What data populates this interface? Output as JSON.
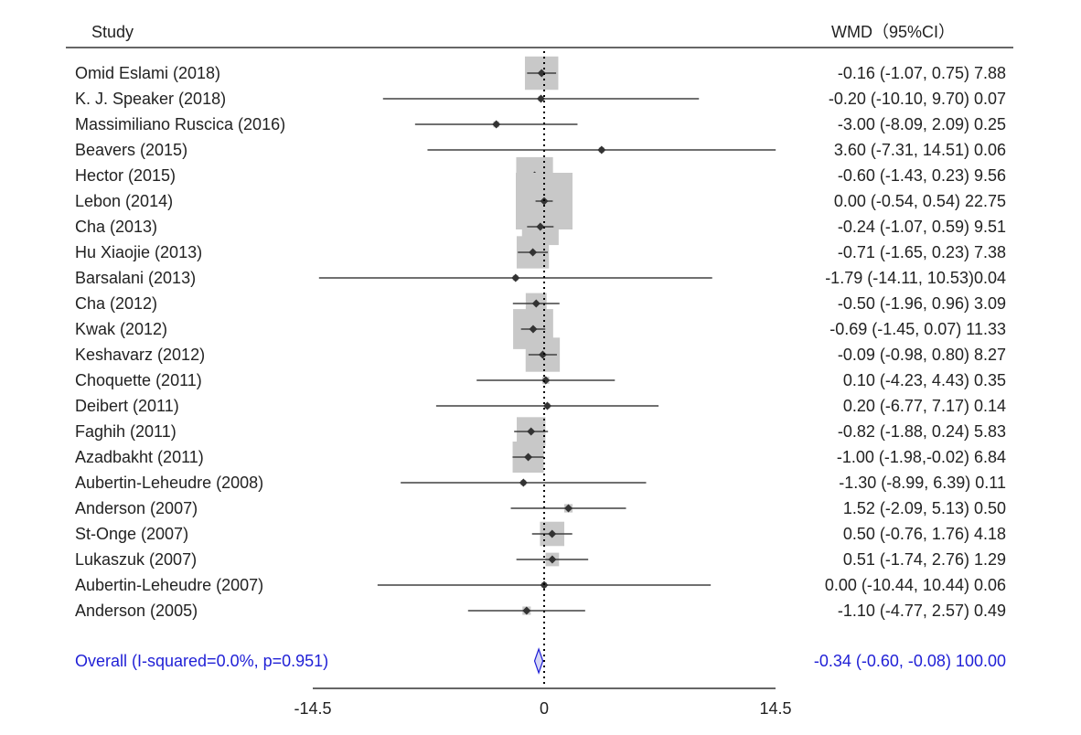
{
  "chart_data": {
    "type": "forest",
    "header": {
      "study": "Study",
      "effect": "WMD（95%CI）"
    },
    "axis": {
      "min": -14.5,
      "max": 14.5,
      "ticks": [
        "-14.5",
        "0",
        "14.5"
      ],
      "reference_line": 0
    },
    "studies": [
      {
        "label": "Omid Eslami (2018)",
        "est": -0.16,
        "lo": -1.07,
        "hi": 0.75,
        "weight": 7.88,
        "text": "-0.16 (-1.07, 0.75) 7.88"
      },
      {
        "label": "K. J. Speaker (2018)",
        "est": -0.2,
        "lo": -10.1,
        "hi": 9.7,
        "weight": 0.07,
        "text": "-0.20 (-10.10, 9.70) 0.07"
      },
      {
        "label": "Massimiliano Ruscica (2016)",
        "est": -3.0,
        "lo": -8.09,
        "hi": 2.09,
        "weight": 0.25,
        "text": "-3.00 (-8.09, 2.09) 0.25"
      },
      {
        "label": "Beavers (2015)",
        "est": 3.6,
        "lo": -7.31,
        "hi": 14.51,
        "weight": 0.06,
        "text": "3.60 (-7.31, 14.51) 0.06"
      },
      {
        "label": "Hector (2015)",
        "est": -0.6,
        "lo": -1.43,
        "hi": 0.23,
        "weight": 9.56,
        "text": "-0.60 (-1.43, 0.23) 9.56"
      },
      {
        "label": "Lebon (2014)",
        "est": 0.0,
        "lo": -0.54,
        "hi": 0.54,
        "weight": 22.75,
        "text": "0.00 (-0.54, 0.54) 22.75"
      },
      {
        "label": "Cha (2013)",
        "est": -0.24,
        "lo": -1.07,
        "hi": 0.59,
        "weight": 9.51,
        "text": "-0.24 (-1.07, 0.59) 9.51"
      },
      {
        "label": "Hu Xiaojie (2013)",
        "est": -0.71,
        "lo": -1.65,
        "hi": 0.23,
        "weight": 7.38,
        "text": "-0.71 (-1.65, 0.23) 7.38"
      },
      {
        "label": "Barsalani (2013)",
        "est": -1.79,
        "lo": -14.11,
        "hi": 10.53,
        "weight": 0.04,
        "text": "-1.79 (-14.11, 10.53)0.04"
      },
      {
        "label": "Cha (2012)",
        "est": -0.5,
        "lo": -1.96,
        "hi": 0.96,
        "weight": 3.09,
        "text": "-0.50 (-1.96, 0.96) 3.09"
      },
      {
        "label": "Kwak (2012)",
        "est": -0.69,
        "lo": -1.45,
        "hi": 0.07,
        "weight": 11.33,
        "text": "-0.69 (-1.45, 0.07) 11.33"
      },
      {
        "label": "Keshavarz (2012)",
        "est": -0.09,
        "lo": -0.98,
        "hi": 0.8,
        "weight": 8.27,
        "text": "-0.09 (-0.98, 0.80) 8.27"
      },
      {
        "label": "Choquette (2011)",
        "est": 0.1,
        "lo": -4.23,
        "hi": 4.43,
        "weight": 0.35,
        "text": "0.10 (-4.23, 4.43) 0.35"
      },
      {
        "label": "Deibert (2011)",
        "est": 0.2,
        "lo": -6.77,
        "hi": 7.17,
        "weight": 0.14,
        "text": "0.20 (-6.77, 7.17) 0.14"
      },
      {
        "label": "Faghih (2011)",
        "est": -0.82,
        "lo": -1.88,
        "hi": 0.24,
        "weight": 5.83,
        "text": "-0.82 (-1.88, 0.24) 5.83"
      },
      {
        "label": "Azadbakht (2011)",
        "est": -1.0,
        "lo": -1.98,
        "hi": -0.02,
        "weight": 6.84,
        "text": "-1.00 (-1.98,-0.02) 6.84"
      },
      {
        "label": "Aubertin-Leheudre (2008)",
        "est": -1.3,
        "lo": -8.99,
        "hi": 6.39,
        "weight": 0.11,
        "text": "-1.30 (-8.99, 6.39) 0.11"
      },
      {
        "label": "Anderson (2007)",
        "est": 1.52,
        "lo": -2.09,
        "hi": 5.13,
        "weight": 0.5,
        "text": "1.52 (-2.09, 5.13) 0.50"
      },
      {
        "label": "St-Onge (2007)",
        "est": 0.5,
        "lo": -0.76,
        "hi": 1.76,
        "weight": 4.18,
        "text": "0.50 (-0.76, 1.76) 4.18"
      },
      {
        "label": "Lukaszuk (2007)",
        "est": 0.51,
        "lo": -1.74,
        "hi": 2.76,
        "weight": 1.29,
        "text": "0.51 (-1.74, 2.76) 1.29"
      },
      {
        "label": "Aubertin-Leheudre (2007)",
        "est": 0.0,
        "lo": -10.44,
        "hi": 10.44,
        "weight": 0.06,
        "text": "0.00 (-10.44, 10.44) 0.06"
      },
      {
        "label": "Anderson (2005)",
        "est": -1.1,
        "lo": -4.77,
        "hi": 2.57,
        "weight": 0.49,
        "text": "-1.10 (-4.77, 2.57) 0.49"
      }
    ],
    "overall": {
      "label": "Overall (I-squared=0.0%, p=0.951)",
      "est": -0.34,
      "lo": -0.6,
      "hi": -0.08,
      "weight": 100.0,
      "text": "-0.34 (-0.60, -0.08) 100.00"
    },
    "colors": {
      "text": "#222222",
      "overall": "#1f1fd6",
      "box": "#c8c8c8",
      "line": "#404040",
      "diamond_fill": "#d6d6f5"
    }
  }
}
